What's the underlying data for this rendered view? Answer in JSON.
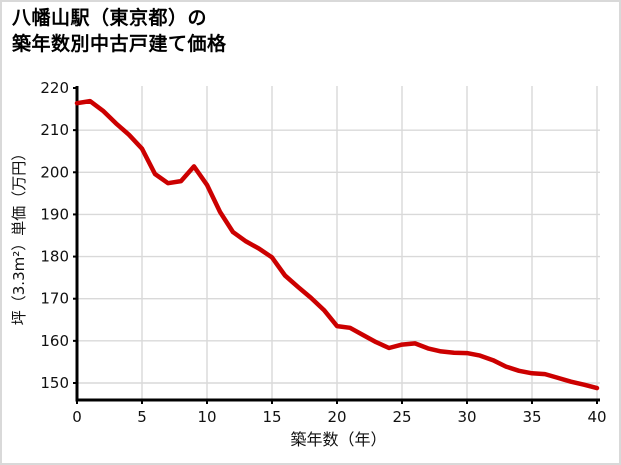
{
  "page": {
    "background_color": "#ffffff",
    "border_color": "#d9d9d9"
  },
  "header": {
    "title_line1": "八幡山駅（東京都）の",
    "title_line2": "築年数別中古戸建て価格"
  },
  "chart_data": {
    "type": "line",
    "title": "八幡山駅（東京都）の築年数別中古戸建て価格",
    "xlabel": "築年数（年）",
    "ylabel": "坪（3.3m²）単価（万円）",
    "xlim": [
      0,
      40
    ],
    "ylim": [
      146,
      220
    ],
    "x_ticks": [
      0,
      5,
      10,
      15,
      20,
      25,
      30,
      35,
      40
    ],
    "y_ticks": [
      150,
      160,
      170,
      180,
      190,
      200,
      210,
      220
    ],
    "grid": true,
    "legend": "none",
    "line_color": "#cc0000",
    "grid_color": "#d9d9d9",
    "axis_color": "#000000",
    "x": [
      0,
      1,
      2,
      3,
      4,
      5,
      6,
      7,
      8,
      9,
      10,
      11,
      12,
      13,
      14,
      15,
      16,
      17,
      18,
      19,
      20,
      21,
      22,
      23,
      24,
      25,
      26,
      27,
      28,
      29,
      30,
      31,
      32,
      33,
      34,
      35,
      36,
      37,
      38,
      39,
      40
    ],
    "values": [
      216.4,
      216.9,
      214.6,
      211.6,
      208.9,
      205.6,
      199.6,
      197.4,
      197.9,
      201.4,
      197.0,
      190.6,
      185.8,
      183.6,
      181.9,
      179.8,
      175.5,
      172.8,
      170.2,
      167.3,
      163.5,
      163.1,
      161.4,
      159.7,
      158.3,
      159.1,
      159.4,
      158.2,
      157.5,
      157.2,
      157.1,
      156.5,
      155.4,
      153.9,
      152.9,
      152.3,
      152.1,
      151.2,
      150.3,
      149.6,
      148.8
    ]
  }
}
